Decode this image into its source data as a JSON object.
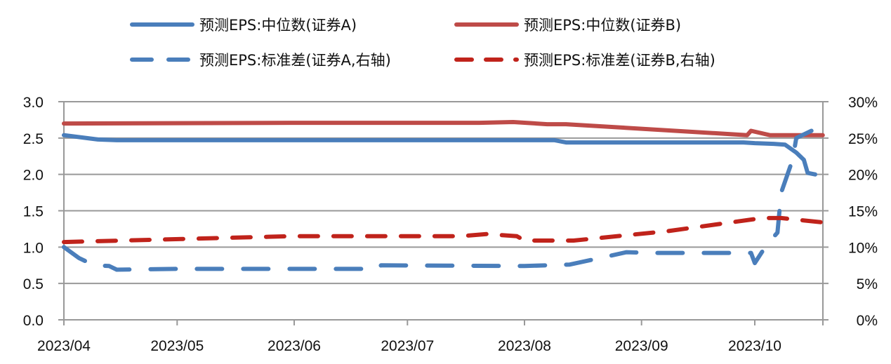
{
  "chart_data": {
    "type": "line",
    "title": "",
    "x_unit": "days since 2023/04/01",
    "xlim": [
      0,
      201
    ],
    "x_ticks": [
      {
        "label": "2023/04",
        "day": 0
      },
      {
        "label": "2023/05",
        "day": 30
      },
      {
        "label": "2023/06",
        "day": 61
      },
      {
        "label": "2023/07",
        "day": 91
      },
      {
        "label": "2023/08",
        "day": 122
      },
      {
        "label": "2023/09",
        "day": 153
      },
      {
        "label": "2023/10",
        "day": 183
      }
    ],
    "y_left": {
      "ylim": [
        0,
        3.0
      ],
      "ticks": [
        "0.0",
        "0.5",
        "1.0",
        "1.5",
        "2.0",
        "2.5",
        "3.0"
      ]
    },
    "y_right": {
      "ylim": [
        0,
        30
      ],
      "ticks": [
        "0%",
        "5%",
        "10%",
        "15%",
        "20%",
        "25%",
        "30%"
      ]
    },
    "grid": "horizontal",
    "legend_placement": "top",
    "series": [
      {
        "name": "预测EPS:中位数(证券A)",
        "axis": "left",
        "color": "#4a7ebb",
        "style": "solid",
        "points": [
          [
            0,
            2.54
          ],
          [
            9,
            2.48
          ],
          [
            14,
            2.47
          ],
          [
            130,
            2.47
          ],
          [
            133,
            2.44
          ],
          [
            180,
            2.44
          ],
          [
            183,
            2.43
          ],
          [
            188,
            2.42
          ],
          [
            191,
            2.41
          ],
          [
            194,
            2.3
          ],
          [
            196,
            2.2
          ],
          [
            197,
            2.02
          ],
          [
            199,
            2.0
          ]
        ]
      },
      {
        "name": "预测EPS:中位数(证券B)",
        "axis": "left",
        "color": "#be4b48",
        "style": "solid",
        "points": [
          [
            0,
            2.7
          ],
          [
            60,
            2.71
          ],
          [
            110,
            2.71
          ],
          [
            119,
            2.72
          ],
          [
            128,
            2.69
          ],
          [
            133,
            2.69
          ],
          [
            181,
            2.54
          ],
          [
            182,
            2.6
          ],
          [
            187,
            2.54
          ],
          [
            201,
            2.54
          ]
        ]
      },
      {
        "name": "预测EPS:标准差(证券A,右轴)",
        "axis": "right",
        "color": "#4a7ebb",
        "style": "dashed",
        "points": [
          [
            0,
            10
          ],
          [
            4,
            8.5
          ],
          [
            8,
            7.5
          ],
          [
            12,
            7.4
          ],
          [
            14,
            6.9
          ],
          [
            30,
            7
          ],
          [
            83,
            7
          ],
          [
            84,
            7.5
          ],
          [
            122,
            7.4
          ],
          [
            134,
            7.6
          ],
          [
            142,
            8.5
          ],
          [
            149,
            9.3
          ],
          [
            156,
            9.2
          ],
          [
            182,
            9.2
          ],
          [
            183,
            7.8
          ],
          [
            186,
            10.2
          ],
          [
            189,
            12
          ],
          [
            190,
            17.5
          ],
          [
            193,
            22
          ],
          [
            194,
            25
          ],
          [
            198,
            26
          ]
        ]
      },
      {
        "name": "预测EPS:标准差(证券B,右轴)",
        "axis": "right",
        "color": "#c0231b",
        "style": "dashed",
        "points": [
          [
            0,
            10.7
          ],
          [
            60,
            11.5
          ],
          [
            105,
            11.5
          ],
          [
            112,
            11.8
          ],
          [
            120,
            11.5
          ],
          [
            122,
            10.9
          ],
          [
            135,
            10.9
          ],
          [
            160,
            12.2
          ],
          [
            185,
            14
          ],
          [
            190,
            14
          ],
          [
            201,
            13.4
          ]
        ]
      }
    ]
  }
}
